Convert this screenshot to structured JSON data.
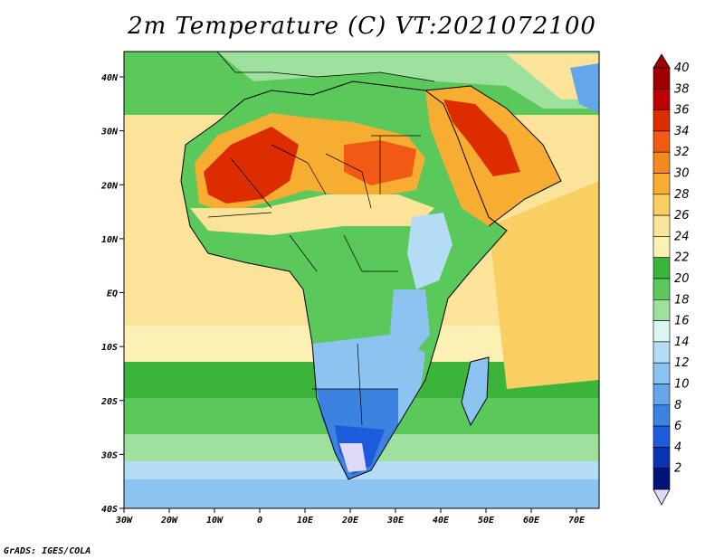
{
  "title": "2m Temperature (C) VT:2021072100",
  "credit": "GrADS: IGES/COLA",
  "lon_labels": [
    "30W",
    "20W",
    "10W",
    "0",
    "10E",
    "20E",
    "30E",
    "40E",
    "50E",
    "60E",
    "70E"
  ],
  "lat_labels": [
    "40N",
    "30N",
    "20N",
    "10N",
    "EQ",
    "10S",
    "20S",
    "30S",
    "40S"
  ],
  "colorbar": {
    "labels": [
      "40",
      "38",
      "36",
      "34",
      "32",
      "30",
      "28",
      "26",
      "24",
      "22",
      "20",
      "18",
      "16",
      "14",
      "12",
      "10",
      "8",
      "6",
      "4",
      "2"
    ],
    "colors": [
      "#9e0000",
      "#c00000",
      "#dc2c00",
      "#f05a14",
      "#f5891e",
      "#f7ad32",
      "#f9cf64",
      "#fbe49a",
      "#fbf1b4",
      "#3cb43c",
      "#5ac85a",
      "#9ee09e",
      "#dcf5f0",
      "#b4dcf5",
      "#8cc3f0",
      "#64a5eb",
      "#3c82e1",
      "#1e5adc",
      "#0a32b4",
      "#001478"
    ],
    "under_color": "#e0d8f8"
  }
}
